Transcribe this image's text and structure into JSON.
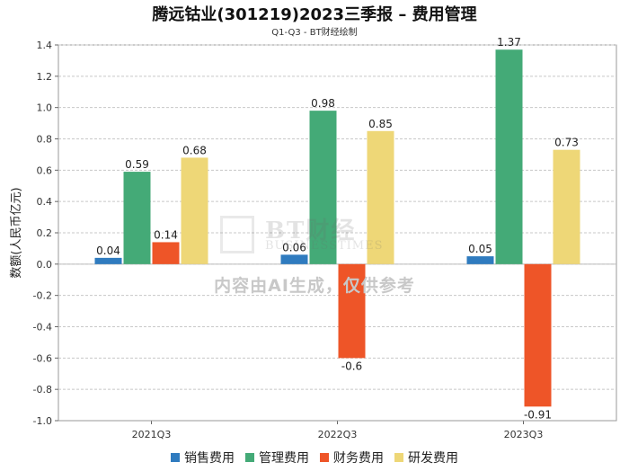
{
  "header": {
    "title": "腾远钴业(301219)2023三季报 – 费用管理",
    "subtitle": "Q1-Q3 - BT财经绘制"
  },
  "watermark": {
    "brand": "BT财经",
    "brand_sub": "BUSINESSTIMES",
    "notice": "内容由AI生成，仅供参考"
  },
  "chart_data": {
    "type": "bar",
    "title": "腾远钴业(301219)2023三季报 – 费用管理",
    "subtitle": "Q1-Q3 - BT财经绘制",
    "xlabel": "",
    "ylabel": "数额(人民币亿元)",
    "ylim": [
      -1.0,
      1.4
    ],
    "yticks": [
      -1.0,
      -0.8,
      -0.6,
      -0.4,
      -0.2,
      0.0,
      0.2,
      0.4,
      0.6,
      0.8,
      1.0,
      1.2,
      1.4
    ],
    "ytick_labels": [
      "-1.0",
      "-0.8",
      "-0.6",
      "-0.4",
      "-0.2",
      "0.0",
      "0.2",
      "0.4",
      "0.6",
      "0.8",
      "1.0",
      "1.2",
      "1.4"
    ],
    "grid": true,
    "legend_position": "bottom-center",
    "categories": [
      "2021Q3",
      "2022Q3",
      "2023Q3"
    ],
    "series": [
      {
        "name": "销售费用",
        "color": "#2f7bbf",
        "values": [
          0.04,
          0.06,
          0.05
        ],
        "labels": [
          "0.04",
          "0.06",
          "0.05"
        ]
      },
      {
        "name": "管理费用",
        "color": "#44aa77",
        "values": [
          0.59,
          0.98,
          1.37
        ],
        "labels": [
          "0.59",
          "0.98",
          "1.37"
        ]
      },
      {
        "name": "财务费用",
        "color": "#ee5528",
        "values": [
          0.14,
          -0.6,
          -0.91
        ],
        "labels": [
          "0.14",
          "-0.6",
          "-0.91"
        ]
      },
      {
        "name": "研发费用",
        "color": "#eed777",
        "values": [
          0.68,
          0.85,
          0.73
        ],
        "labels": [
          "0.68",
          "0.85",
          "0.73"
        ]
      }
    ]
  }
}
